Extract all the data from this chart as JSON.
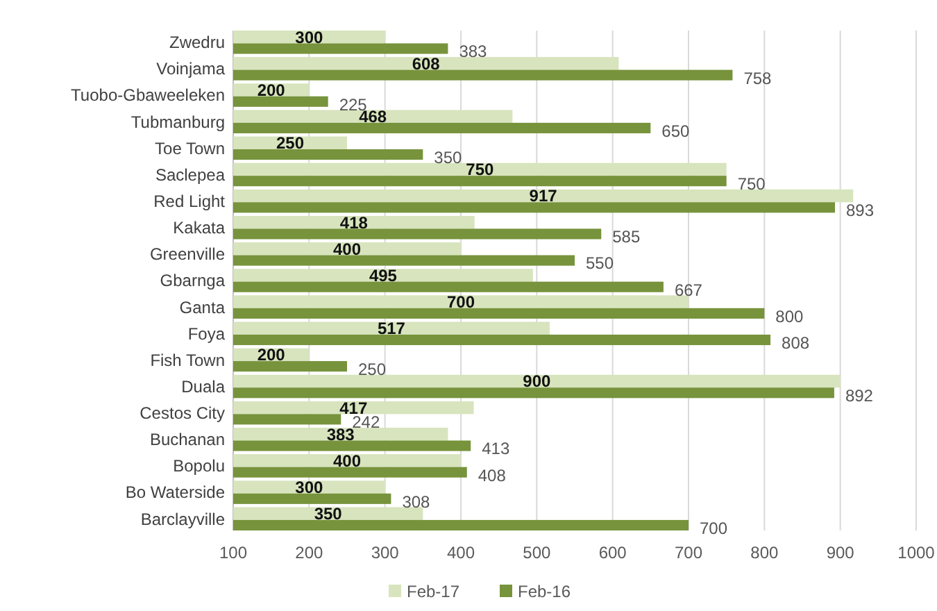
{
  "chart_data": {
    "type": "bar",
    "orientation": "horizontal",
    "categories": [
      "Zwedru",
      "Voinjama",
      "Tuobo-Gbaweeleken",
      "Tubmanburg",
      "Toe Town",
      "Saclepea",
      "Red Light",
      "Kakata",
      "Greenville",
      "Gbarnga",
      "Ganta",
      "Foya",
      "Fish Town",
      "Duala",
      "Cestos City",
      "Buchanan",
      "Bopolu",
      "Bo Waterside",
      "Barclayville"
    ],
    "series": [
      {
        "name": "Feb-17",
        "color": "#d7e4bd",
        "values": [
          300,
          608,
          200,
          468,
          250,
          750,
          917,
          418,
          400,
          495,
          700,
          517,
          200,
          900,
          417,
          383,
          400,
          300,
          350
        ]
      },
      {
        "name": "Feb-16",
        "color": "#77933c",
        "values": [
          383,
          758,
          225,
          650,
          350,
          750,
          893,
          585,
          550,
          667,
          800,
          808,
          250,
          892,
          242,
          413,
          408,
          308,
          700
        ]
      }
    ],
    "xlim": [
      100,
      1000
    ],
    "xticks": [
      100,
      200,
      300,
      400,
      500,
      600,
      700,
      800,
      900,
      1000
    ],
    "grid": "x",
    "legend": "bottom",
    "data_labels": true
  }
}
